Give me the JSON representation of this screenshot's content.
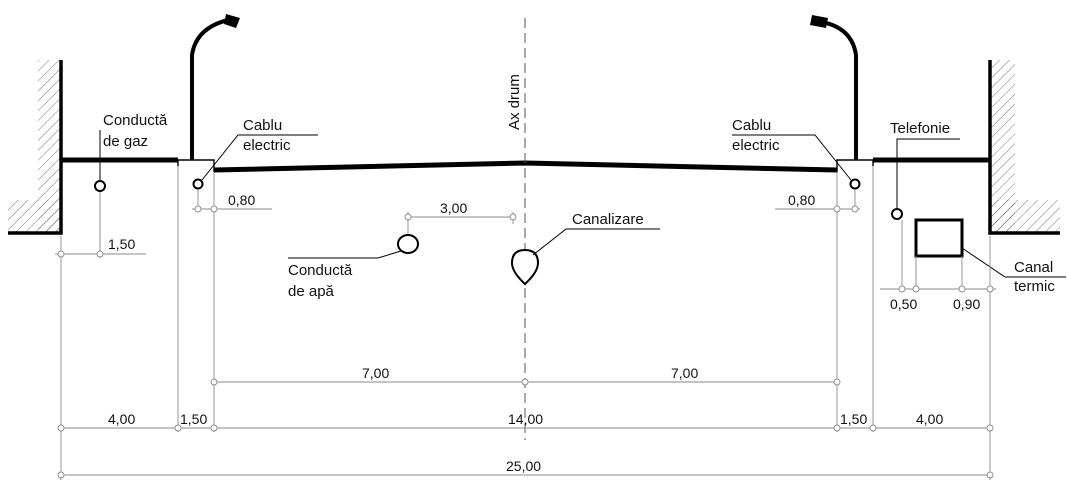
{
  "labels": {
    "gas_pipe": [
      "Conductă",
      "de gaz"
    ],
    "cable_left": [
      "Cablu",
      "electric"
    ],
    "road_axis": "Ax drum",
    "cable_right": [
      "Cablu",
      "electric"
    ],
    "telephone": "Telefonie",
    "sewer": "Canalizare",
    "water_pipe": [
      "Conductă",
      "de apă"
    ],
    "thermal_channel": [
      "Canal",
      "termic"
    ]
  },
  "dimensions": {
    "cable_left_offset": "0,80",
    "cable_right_offset": "0,80",
    "water_to_axis": "3,00",
    "gas_offset": "1,50",
    "telephone_offset": "0,50",
    "thermal_offset": "0,90",
    "half_road_left": "7,00",
    "half_road_right": "7,00",
    "sidewalk_left": "4,00",
    "curb_left": "1,50",
    "road_width": "14,00",
    "curb_right": "1,50",
    "sidewalk_right": "4,00",
    "total_width": "25,00"
  }
}
